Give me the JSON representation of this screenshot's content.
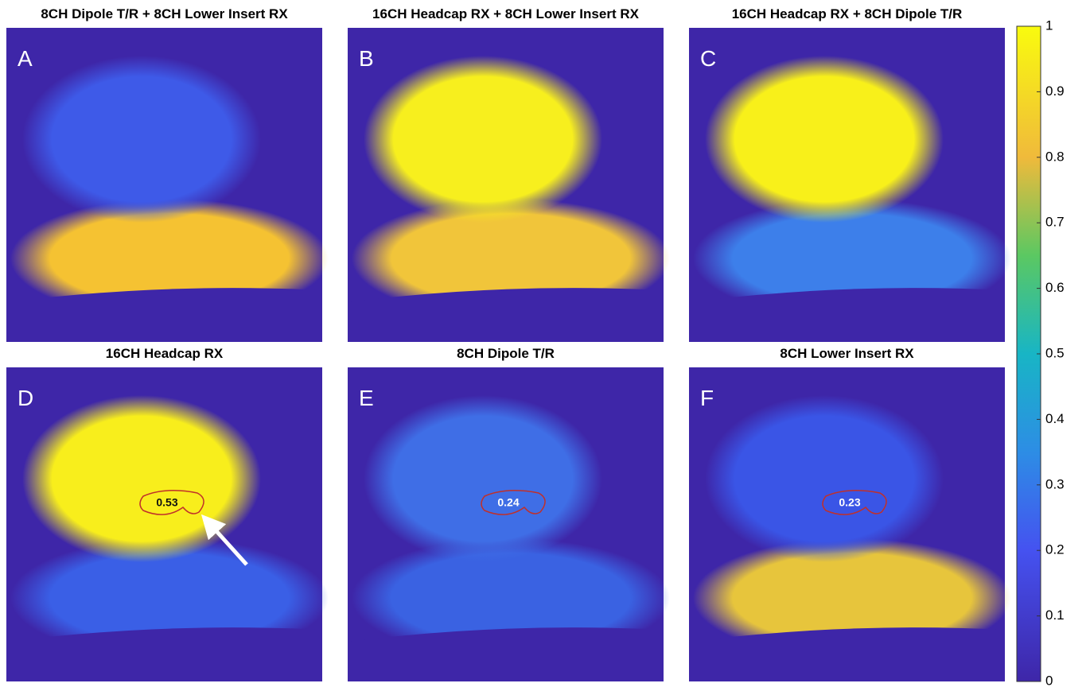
{
  "panels": [
    {
      "title": "8CH Dipole T/R + 8CH Lower Insert RX",
      "letter": "A"
    },
    {
      "title": "16CH Headcap RX + 8CH Lower Insert RX",
      "letter": "B"
    },
    {
      "title": "16CH Headcap RX + 8CH Dipole T/R",
      "letter": "C"
    },
    {
      "title": "16CH Headcap RX",
      "letter": "D",
      "roi_value": 0.53
    },
    {
      "title": "8CH Dipole T/R",
      "letter": "E",
      "roi_value": 0.24
    },
    {
      "title": "8CH Lower Insert RX",
      "letter": "F",
      "roi_value": 0.23
    }
  ],
  "colorbar": {
    "lim": [
      0,
      1
    ],
    "ticks": [
      0,
      0.1,
      0.2,
      0.3,
      0.4,
      0.5,
      0.6,
      0.7,
      0.8,
      0.9,
      1
    ]
  }
}
